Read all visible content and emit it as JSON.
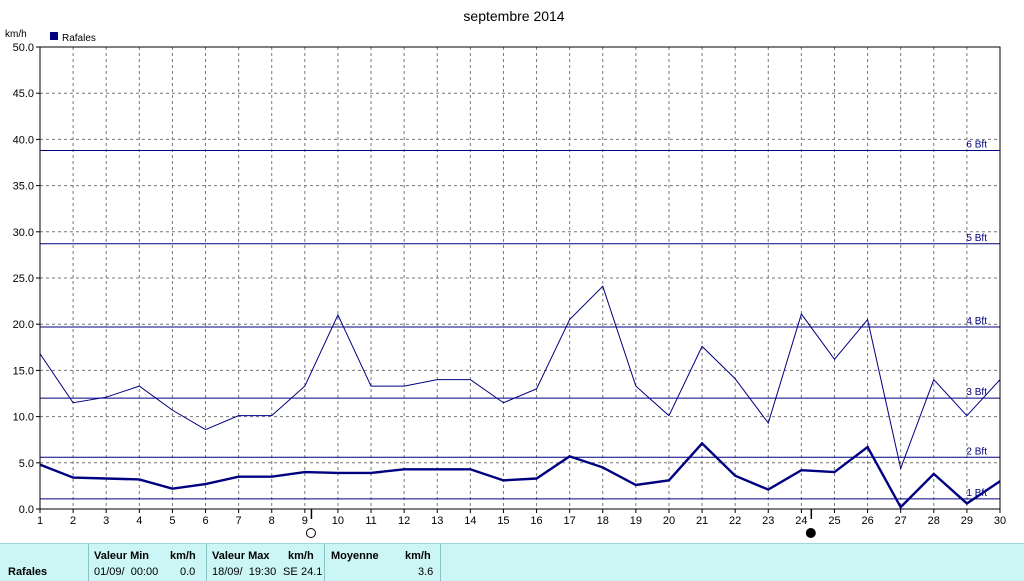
{
  "chart_data": {
    "type": "line",
    "title": "septembre 2014",
    "ylabel": "km/h",
    "ylim": [
      0,
      50
    ],
    "xlim": [
      1,
      30
    ],
    "grid": true,
    "legend": {
      "position": "top-left",
      "entries": [
        "Rafales"
      ]
    },
    "x": [
      1,
      2,
      3,
      4,
      5,
      6,
      7,
      8,
      9,
      10,
      11,
      12,
      13,
      14,
      15,
      16,
      17,
      18,
      19,
      20,
      21,
      22,
      23,
      24,
      25,
      26,
      27,
      28,
      29,
      30
    ],
    "xticks": [
      "1",
      "2",
      "3",
      "4",
      "5",
      "6",
      "7",
      "8",
      "9",
      "10",
      "11",
      "12",
      "13",
      "14",
      "15",
      "16",
      "17",
      "18",
      "19",
      "20",
      "21",
      "22",
      "23",
      "24",
      "25",
      "26",
      "27",
      "28",
      "29",
      "30"
    ],
    "yticks": [
      "0.0",
      "5.0",
      "10.0",
      "15.0",
      "20.0",
      "25.0",
      "30.0",
      "35.0",
      "40.0",
      "45.0",
      "50.0"
    ],
    "series": [
      {
        "name": "Rafales",
        "style": "thick",
        "color": "#000080",
        "values": [
          4.8,
          3.4,
          3.3,
          3.2,
          2.2,
          2.7,
          3.5,
          3.5,
          4.0,
          3.9,
          3.9,
          4.3,
          4.3,
          4.3,
          3.1,
          3.3,
          5.7,
          4.5,
          2.6,
          3.1,
          7.1,
          3.6,
          2.1,
          4.2,
          4.0,
          6.7,
          0.2,
          3.8,
          0.6,
          3.0
        ]
      },
      {
        "style": "thin",
        "color": "#000080",
        "values": [
          16.8,
          11.5,
          12.1,
          13.3,
          10.7,
          8.6,
          10.1,
          10.1,
          13.3,
          21.0,
          13.3,
          13.3,
          14.0,
          14.0,
          11.5,
          13.0,
          20.5,
          24.1,
          13.3,
          10.1,
          17.6,
          14.1,
          9.3,
          21.1,
          16.2,
          20.5,
          4.4,
          14.0,
          10.1,
          14.0
        ]
      }
    ],
    "annotations": [
      {
        "label": "1 Bft",
        "y": 1.1
      },
      {
        "label": "2 Bft",
        "y": 5.6
      },
      {
        "label": "3 Bft",
        "y": 12.0
      },
      {
        "label": "4 Bft",
        "y": 19.7
      },
      {
        "label": "5 Bft",
        "y": 28.7
      },
      {
        "label": "6 Bft",
        "y": 38.8
      }
    ],
    "moon_markers": [
      {
        "phase": "full",
        "x": 9.2
      },
      {
        "phase": "new",
        "x": 24.3
      }
    ]
  },
  "summary": {
    "series_label": "Rafales",
    "min_header": "Valeur Min",
    "min_unit": "km/h",
    "min_time": "01/09/  00:00",
    "min_value": "0.0",
    "max_header": "Valeur Max",
    "max_unit": "km/h",
    "max_time": "18/09/  19:30",
    "max_dir": "SE",
    "max_value": "24.1",
    "avg_header": "Moyenne",
    "avg_unit": "km/h",
    "avg_value": "3.6"
  }
}
